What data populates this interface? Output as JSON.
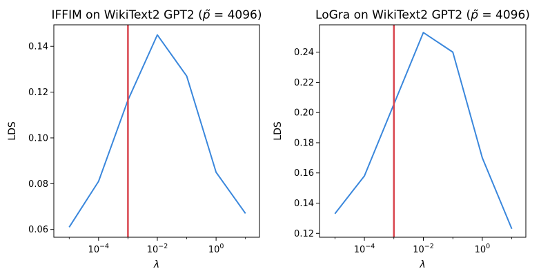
{
  "chart_data": [
    {
      "type": "line",
      "title": "IFFIM on WikiText2 GPT2 (p̃ = 4096)",
      "title_parts": {
        "prefix": "IFFIM on WikiText2 GPT2 (",
        "symbol": "p̃",
        "suffix": " = 4096)"
      },
      "xlabel": "λ",
      "ylabel": "LDS",
      "xscale": "log",
      "x": [
        1e-05,
        0.0001,
        0.001,
        0.01,
        0.1,
        1,
        10
      ],
      "series": [
        {
          "name": "LDS",
          "color": "#3a87dc",
          "values": [
            0.061,
            0.081,
            0.1165,
            0.145,
            0.127,
            0.085,
            0.067
          ]
        }
      ],
      "vline": {
        "x": 0.001,
        "color": "#d9454e"
      },
      "xlim": [
        3e-06,
        30
      ],
      "ylim": [
        0.0566,
        0.1494
      ],
      "xticks": [
        {
          "value": 0.0001,
          "base": "10",
          "exp": "−4"
        },
        {
          "value": 0.01,
          "base": "10",
          "exp": "−2"
        },
        {
          "value": 1,
          "base": "10",
          "exp": "0"
        }
      ],
      "yticks": [
        {
          "value": 0.06,
          "label": "0.06"
        },
        {
          "value": 0.08,
          "label": "0.08"
        },
        {
          "value": 0.1,
          "label": "0.10"
        },
        {
          "value": 0.12,
          "label": "0.12"
        },
        {
          "value": 0.14,
          "label": "0.14"
        }
      ],
      "grid": false
    },
    {
      "type": "line",
      "title": "LoGra on WikiText2 GPT2 (p̃ = 4096)",
      "title_parts": {
        "prefix": "LoGra on WikiText2 GPT2 (",
        "symbol": "p̃",
        "suffix": " = 4096)"
      },
      "xlabel": "λ",
      "ylabel": "LDS",
      "xscale": "log",
      "x": [
        1e-05,
        0.0001,
        0.001,
        0.01,
        0.1,
        1,
        10
      ],
      "series": [
        {
          "name": "LDS",
          "color": "#3a87dc",
          "values": [
            0.133,
            0.158,
            0.2055,
            0.253,
            0.24,
            0.17,
            0.123
          ]
        }
      ],
      "vline": {
        "x": 0.001,
        "color": "#d9454e"
      },
      "xlim": [
        3e-06,
        30
      ],
      "ylim": [
        0.1174,
        0.2581
      ],
      "xticks": [
        {
          "value": 0.0001,
          "base": "10",
          "exp": "−4"
        },
        {
          "value": 0.01,
          "base": "10",
          "exp": "−2"
        },
        {
          "value": 1,
          "base": "10",
          "exp": "0"
        }
      ],
      "yticks": [
        {
          "value": 0.12,
          "label": "0.12"
        },
        {
          "value": 0.14,
          "label": "0.14"
        },
        {
          "value": 0.16,
          "label": "0.16"
        },
        {
          "value": 0.18,
          "label": "0.18"
        },
        {
          "value": 0.2,
          "label": "0.20"
        },
        {
          "value": 0.22,
          "label": "0.22"
        },
        {
          "value": 0.24,
          "label": "0.24"
        }
      ],
      "grid": false
    }
  ]
}
